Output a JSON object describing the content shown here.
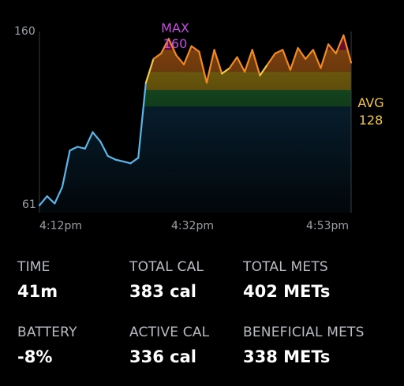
{
  "chart_data": {
    "type": "line",
    "ylim": [
      61,
      160
    ],
    "y_tick_labels": [
      "160",
      "61"
    ],
    "x_tick_labels": [
      "4:12pm",
      "4:32pm",
      "4:53pm"
    ],
    "max": {
      "label": "MAX",
      "value": "160"
    },
    "avg": {
      "label": "AVG",
      "value": "128"
    },
    "zone_colors": [
      "#c81e5c",
      "#f07d1e",
      "#ecc31e",
      "#2fa84a",
      "#1f7fbf"
    ],
    "line_colors": {
      "low": "#5bb6ea",
      "mid": "#3ecf6a",
      "yellow": "#f2c94c",
      "orange": "#f08a24",
      "red": "#ff2e7a"
    },
    "x_minutes": [
      0,
      1,
      2,
      3,
      4,
      5,
      6,
      7,
      8,
      9,
      10,
      11,
      12,
      13,
      14,
      15,
      16,
      17,
      18,
      19,
      20,
      21,
      22,
      23,
      24,
      25,
      26,
      27,
      28,
      29,
      30,
      31,
      32,
      33,
      34,
      35,
      36,
      37,
      38,
      39,
      40,
      41
    ],
    "y": [
      65,
      70,
      66,
      75,
      95,
      97,
      96,
      105,
      100,
      92,
      90,
      89,
      88,
      91,
      132,
      145,
      148,
      156,
      147,
      142,
      152,
      149,
      132,
      150,
      137,
      140,
      146,
      138,
      150,
      136,
      142,
      148,
      150,
      139,
      151,
      145,
      150,
      140,
      153,
      148,
      158,
      143
    ]
  },
  "stats": [
    {
      "title": "TIME",
      "value": "41m"
    },
    {
      "title": "TOTAL CAL",
      "value": "383 cal"
    },
    {
      "title": "TOTAL METS",
      "value": "402 METs"
    },
    {
      "title": "BATTERY",
      "value": "-8%"
    },
    {
      "title": "ACTIVE CAL",
      "value": "336 cal"
    },
    {
      "title": "BENEFICIAL METS",
      "value": "338 METs"
    }
  ]
}
